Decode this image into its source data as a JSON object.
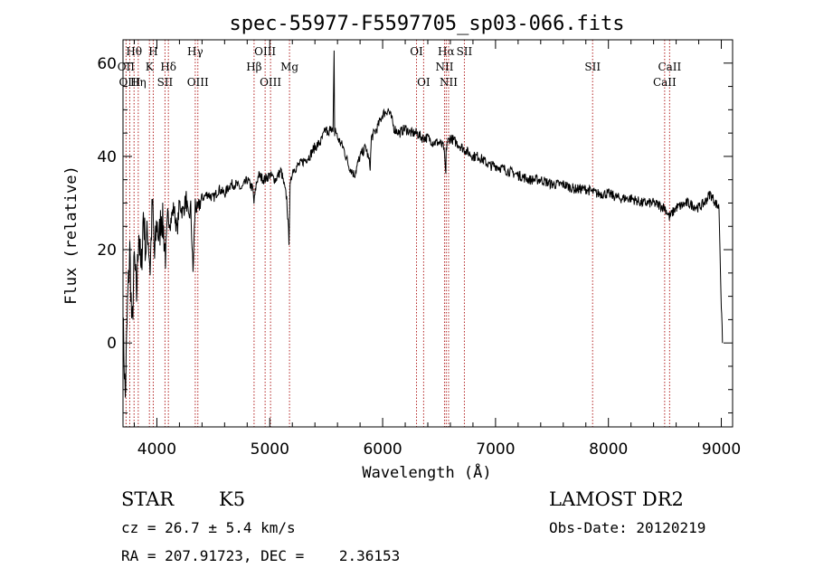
{
  "chart_data": {
    "type": "line",
    "title": "spec-55977-F5597705_sp03-066.fits",
    "xlabel": "Wavelength (Å)",
    "ylabel": "Flux (relative)",
    "xlim": [
      3700,
      9100
    ],
    "ylim": [
      -18,
      65
    ],
    "x_ticks": [
      4000,
      5000,
      6000,
      7000,
      8000,
      9000
    ],
    "y_ticks": [
      0,
      20,
      40,
      60
    ],
    "grid": false,
    "series": [
      {
        "values_desc": "",
        "x": [
          3700,
          3720,
          3740,
          3760,
          3780,
          3800,
          3820,
          3840,
          3860,
          3880,
          3900,
          3920,
          3940,
          3960,
          3980,
          4000,
          4020,
          4040,
          4060,
          4080,
          4100,
          4120,
          4150,
          4180,
          4200,
          4230,
          4260,
          4280,
          4300,
          4320,
          4340,
          4360,
          4380,
          4400,
          4450,
          4500,
          4550,
          4600,
          4650,
          4700,
          4750,
          4800,
          4850,
          4860,
          4880,
          4900,
          4950,
          5000,
          5050,
          5100,
          5150,
          5170,
          5180,
          5200,
          5250,
          5300,
          5350,
          5400,
          5450,
          5500,
          5520,
          5540,
          5560,
          5570,
          5575,
          5580,
          5600,
          5650,
          5700,
          5750,
          5800,
          5850,
          5890,
          5900,
          5950,
          6000,
          6050,
          6080,
          6100,
          6150,
          6200,
          6250,
          6300,
          6350,
          6400,
          6450,
          6500,
          6540,
          6560,
          6563,
          6570,
          6600,
          6650,
          6700,
          6750,
          6800,
          6850,
          6900,
          6950,
          7000,
          7100,
          7200,
          7300,
          7400,
          7500,
          7600,
          7700,
          7800,
          7900,
          8000,
          8100,
          8200,
          8300,
          8400,
          8500,
          8540,
          8600,
          8700,
          8800,
          8850,
          8900,
          8950,
          8980,
          9000,
          9010
        ],
        "y": [
          5,
          -12,
          8,
          20,
          2,
          18,
          10,
          25,
          14,
          28,
          20,
          24,
          16,
          30,
          18,
          26,
          22,
          28,
          24,
          18,
          27,
          26,
          29,
          24,
          30,
          28,
          31,
          26,
          29,
          15,
          30,
          28,
          30,
          31,
          32,
          31,
          33,
          32,
          34,
          34,
          33,
          35,
          33,
          30,
          34,
          36,
          35,
          36,
          35,
          37,
          31,
          22,
          33,
          37,
          38,
          39,
          40,
          42,
          43,
          46,
          44,
          47,
          45,
          62,
          45,
          46,
          44,
          42,
          38,
          36,
          40,
          42,
          38,
          44,
          46,
          49,
          50,
          48,
          46,
          45,
          46,
          45,
          45,
          44,
          44,
          43,
          43,
          42,
          36,
          41,
          43,
          44,
          43,
          42,
          41,
          40,
          40,
          39,
          38,
          38,
          37,
          36,
          35,
          35,
          34,
          34,
          33,
          33,
          32,
          32,
          31,
          31,
          30,
          30,
          29,
          27,
          29,
          30,
          29,
          30,
          32,
          30,
          29,
          8,
          0
        ]
      }
    ],
    "lines": [
      {
        "label": "Hθ",
        "wl": 3798,
        "row": 1
      },
      {
        "label": "OII",
        "wl": 3727,
        "row": 2
      },
      {
        "label": "OIII",
        "wl": 3760,
        "row": 3
      },
      {
        "label": "Hη",
        "wl": 3835,
        "row": 3
      },
      {
        "label": "H",
        "wl": 3968,
        "row": 1
      },
      {
        "label": "K",
        "wl": 3934,
        "row": 2
      },
      {
        "label": "Hδ",
        "wl": 4102,
        "row": 2
      },
      {
        "label": "SII",
        "wl": 4072,
        "row": 3
      },
      {
        "label": "Hγ",
        "wl": 4340,
        "row": 1
      },
      {
        "label": "OIII",
        "wl": 4363,
        "row": 3
      },
      {
        "label": "OIII",
        "wl": 4959,
        "row": 1
      },
      {
        "label": "Hβ",
        "wl": 4861,
        "row": 2
      },
      {
        "label": "OIII",
        "wl": 5007,
        "row": 3
      },
      {
        "label": "Mg",
        "wl": 5175,
        "row": 2
      },
      {
        "label": "OI",
        "wl": 6300,
        "row": 1
      },
      {
        "label": "OI",
        "wl": 6363,
        "row": 3
      },
      {
        "label": "Hα",
        "wl": 6563,
        "row": 1
      },
      {
        "label": "SII",
        "wl": 6724,
        "row": 1
      },
      {
        "label": "NII",
        "wl": 6548,
        "row": 2
      },
      {
        "label": "NII",
        "wl": 6584,
        "row": 3
      },
      {
        "label": "SII",
        "wl": 7860,
        "row": 2
      },
      {
        "label": "CaII",
        "wl": 8542,
        "row": 2
      },
      {
        "label": "CaII",
        "wl": 8498,
        "row": 3
      }
    ]
  },
  "info": {
    "object_class": "STAR",
    "subclass": "K5",
    "survey": "LAMOST DR2",
    "cz": "cz = 26.7 ± 5.4 km/s",
    "obs_date": "Obs-Date: 20120219",
    "coords": "RA = 207.91723, DEC =    2.36153"
  }
}
